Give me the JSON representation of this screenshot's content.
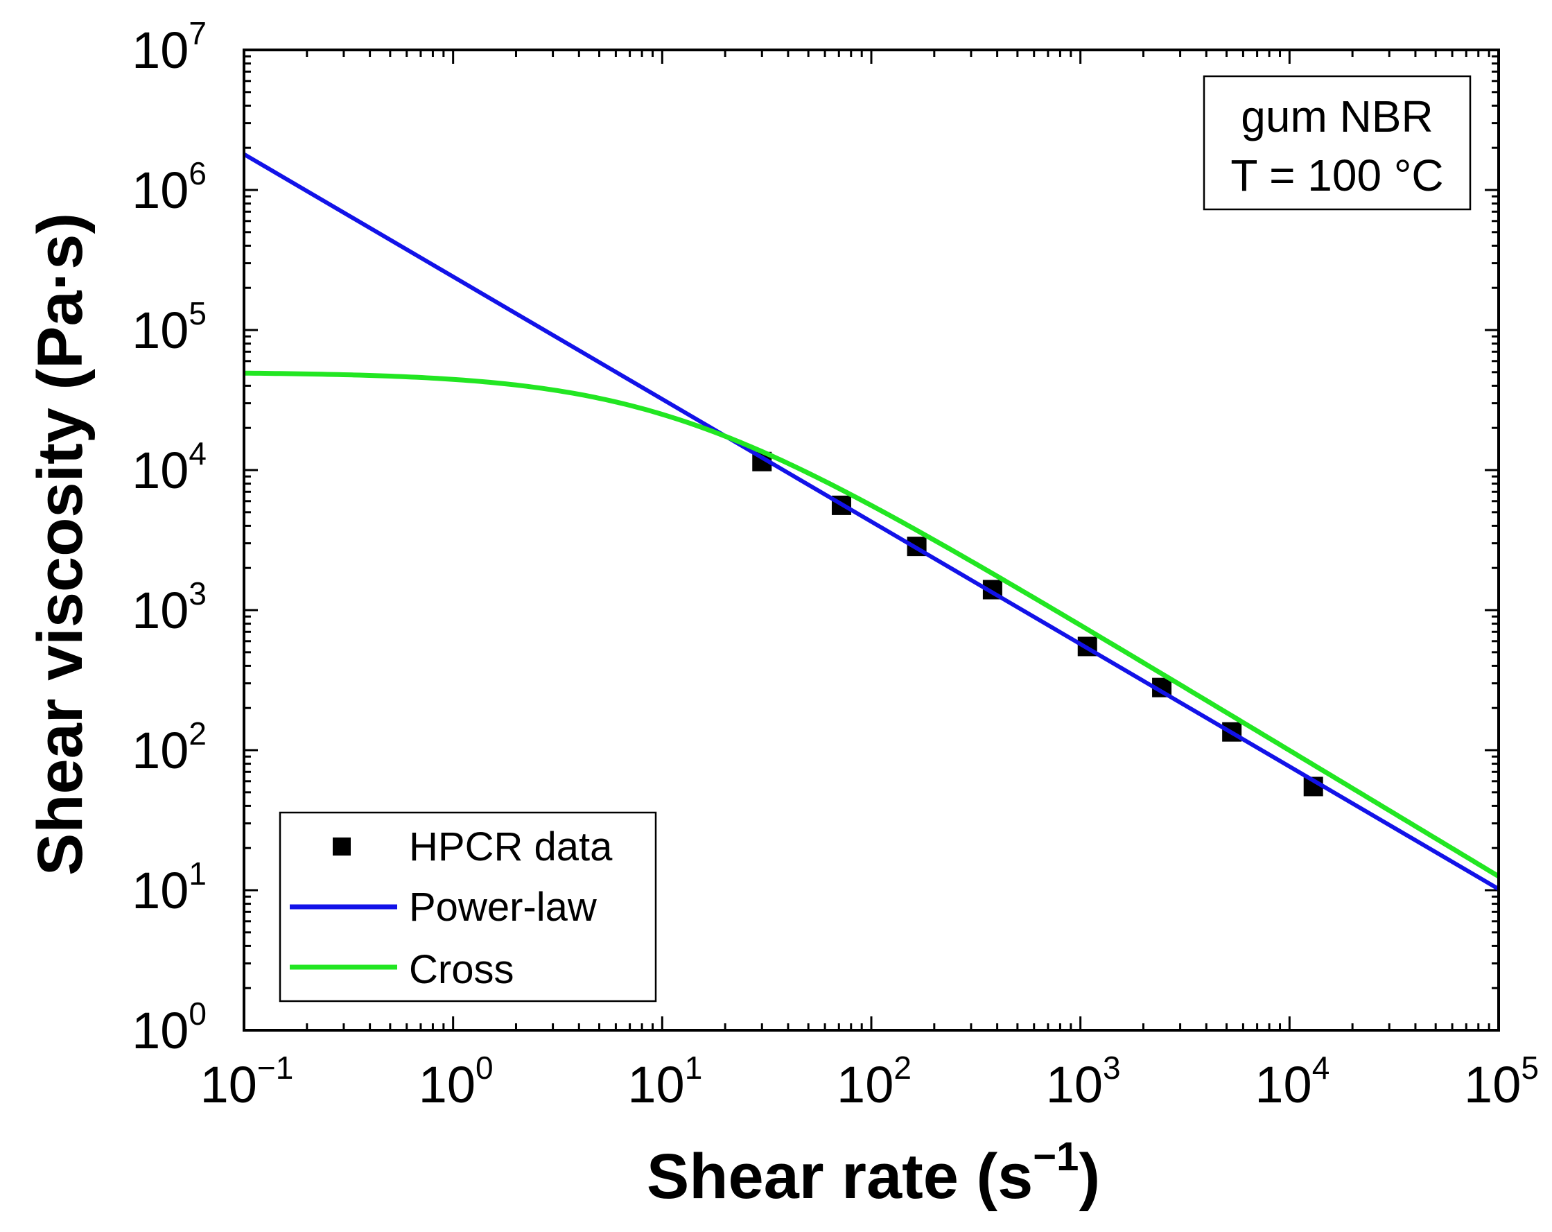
{
  "chart_data": {
    "type": "line",
    "xscale": "log",
    "yscale": "log",
    "xlim": [
      0.1,
      100000
    ],
    "ylim": [
      1,
      10000000
    ],
    "x_ticks": [
      {
        "base": "10",
        "exp": "−1"
      },
      {
        "base": "10",
        "exp": "0"
      },
      {
        "base": "10",
        "exp": "1"
      },
      {
        "base": "10",
        "exp": "2"
      },
      {
        "base": "10",
        "exp": "3"
      },
      {
        "base": "10",
        "exp": "4"
      },
      {
        "base": "10",
        "exp": "5"
      }
    ],
    "y_ticks": [
      {
        "base": "10",
        "exp": "0"
      },
      {
        "base": "10",
        "exp": "1"
      },
      {
        "base": "10",
        "exp": "2"
      },
      {
        "base": "10",
        "exp": "3"
      },
      {
        "base": "10",
        "exp": "4"
      },
      {
        "base": "10",
        "exp": "5"
      },
      {
        "base": "10",
        "exp": "6"
      },
      {
        "base": "10",
        "exp": "7"
      }
    ],
    "xlabel": {
      "text": "Shear rate (s",
      "exp": "−1",
      "close": ")"
    },
    "ylabel": "Shear viscosity (Pa·s)",
    "annotation": {
      "line1": "gum NBR",
      "line2": "T = 100 °C"
    },
    "legend_position": "bottom-left",
    "series": [
      {
        "name": "HPCR data",
        "kind": "scatter",
        "marker": "square",
        "color": "#000000",
        "x": [
          30,
          72,
          165,
          380,
          1080,
          2450,
          5300,
          13000
        ],
        "y": [
          11500,
          5600,
          2850,
          1400,
          550,
          280,
          135,
          55
        ]
      },
      {
        "name": "Power-law",
        "kind": "line",
        "color": "#1212e8",
        "x": [
          0.1,
          100000
        ],
        "y": [
          1800000,
          10.2
        ]
      },
      {
        "name": "Cross",
        "kind": "line",
        "color": "#22e622",
        "model": {
          "eta0": 50000,
          "lambda": 0.1,
          "n": 0.1
        },
        "x_range": [
          0.1,
          100000
        ]
      }
    ]
  }
}
